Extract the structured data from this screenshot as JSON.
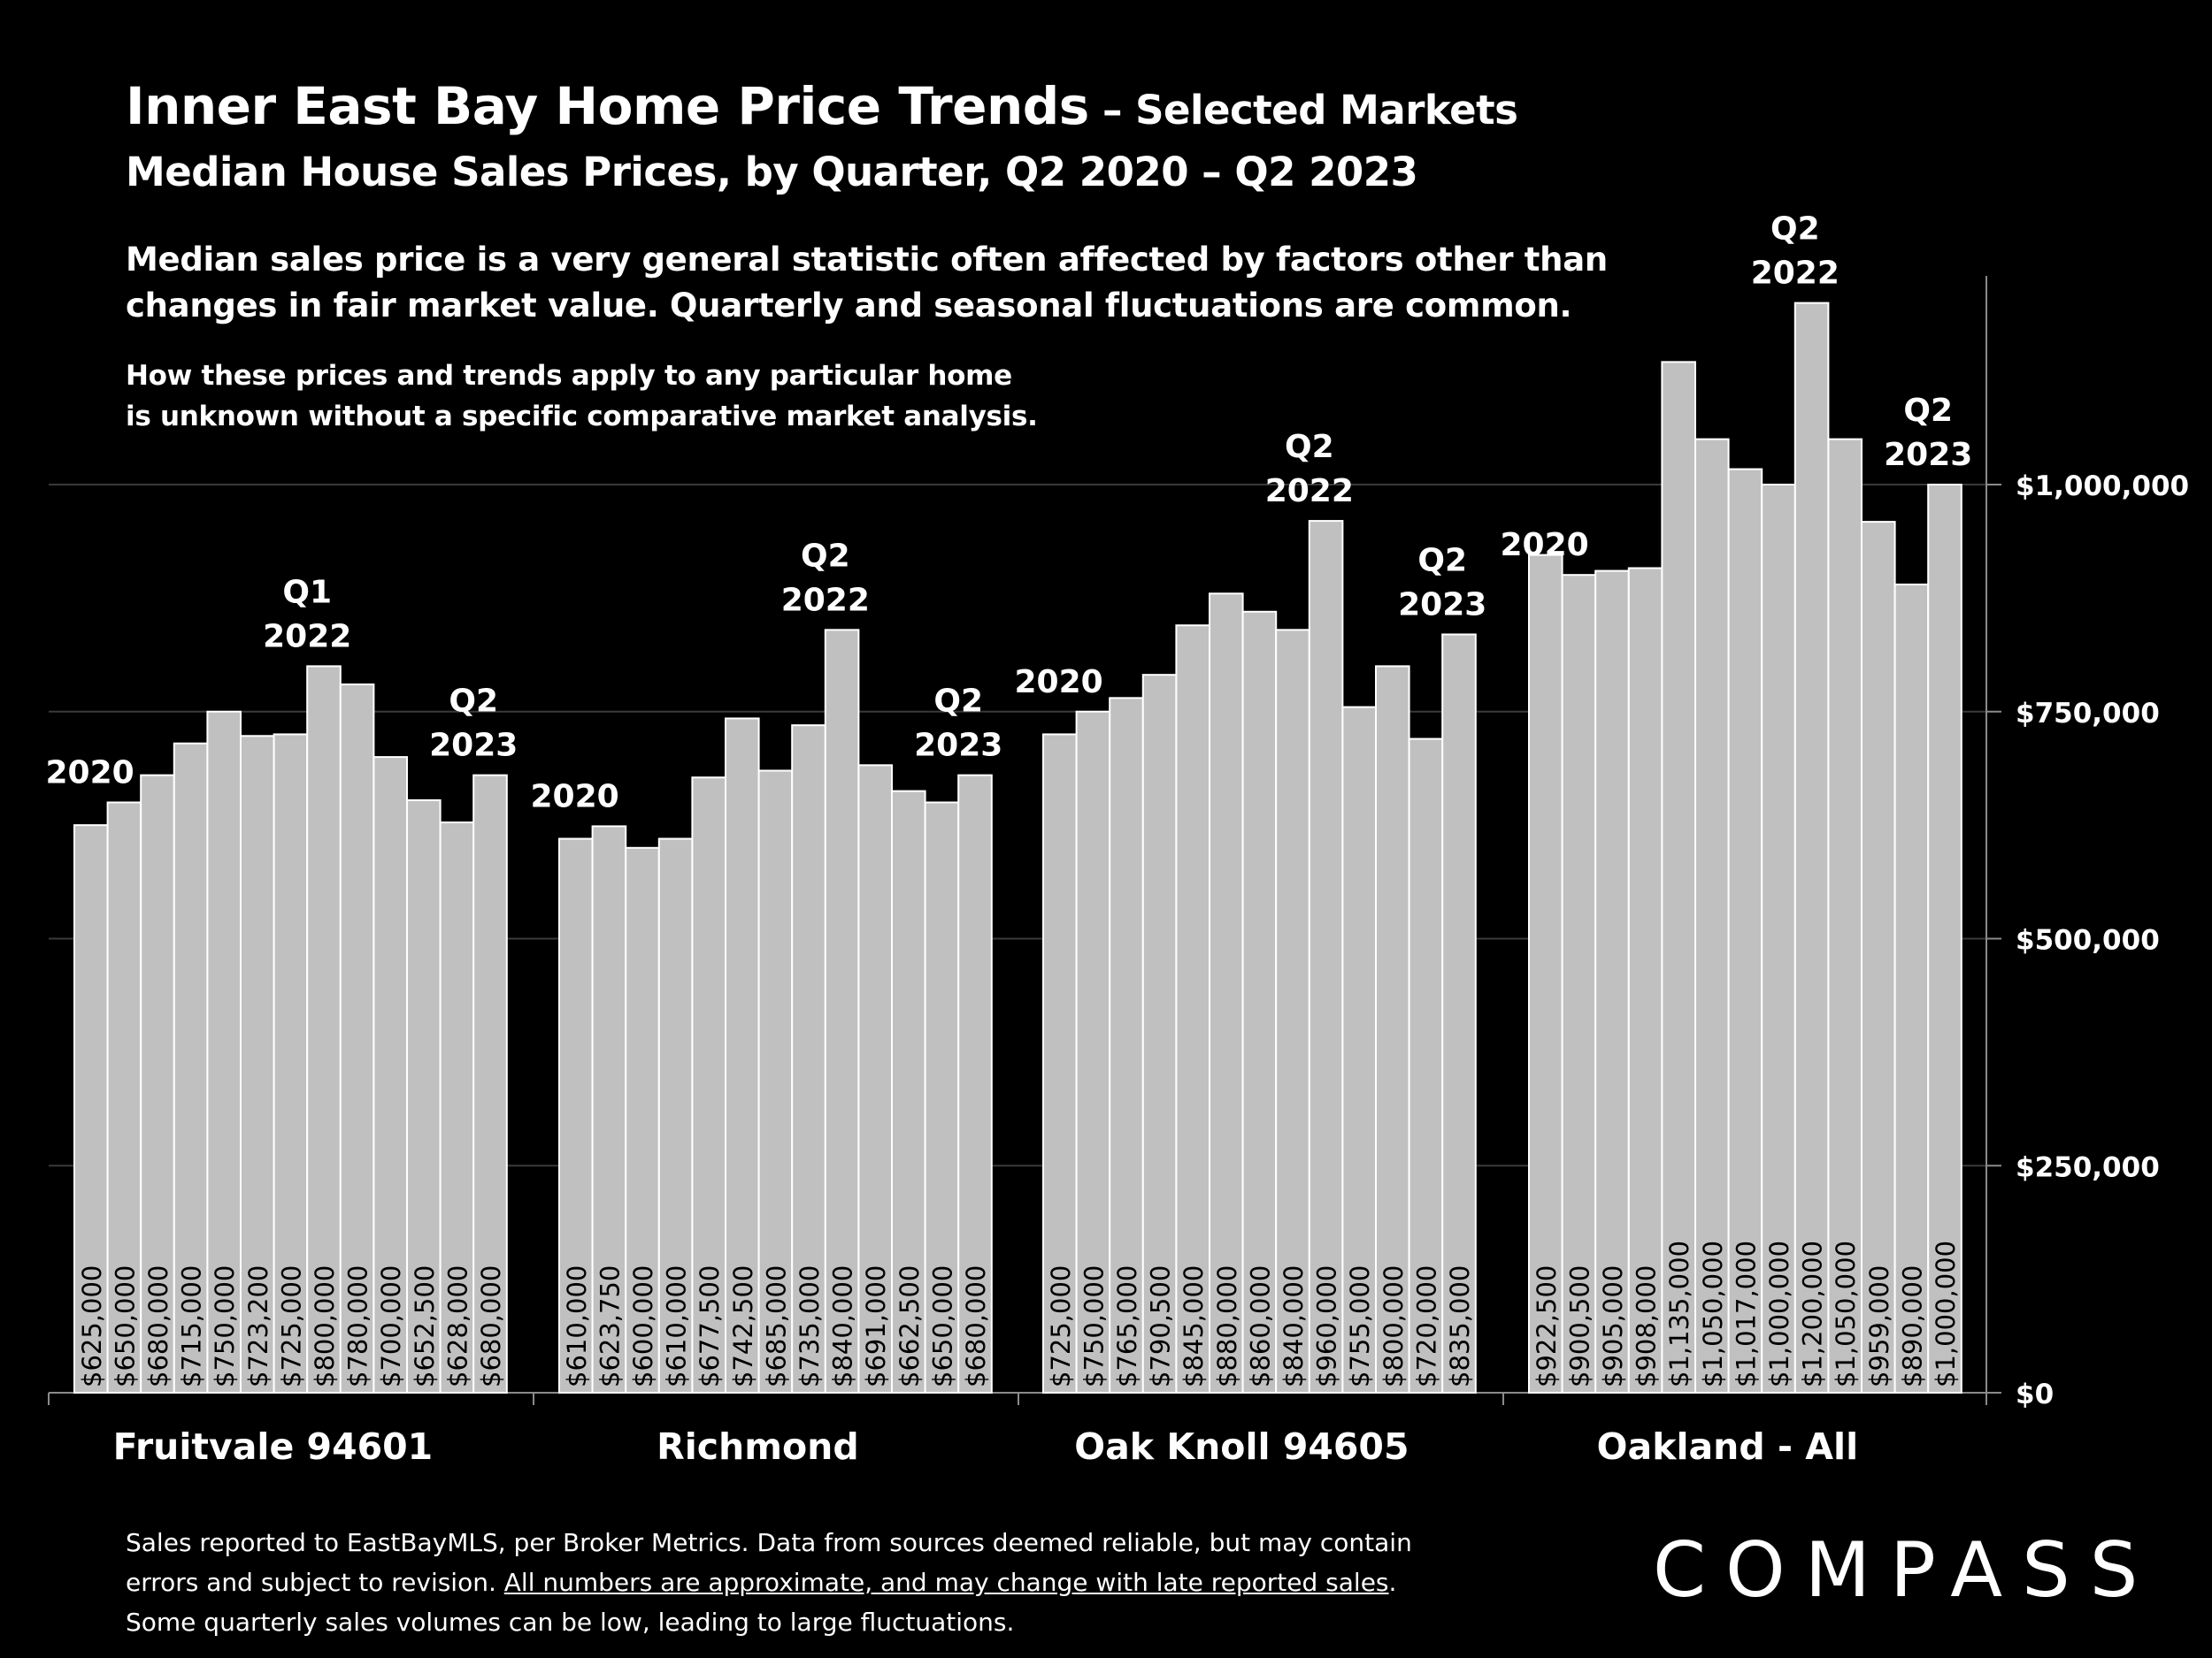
{
  "header": {
    "title_main": "Inner East Bay Home Price Trends",
    "title_sub": " – Selected Markets",
    "subtitle": "Median House Sales Prices, by Quarter, Q2 2020 – Q2 2023",
    "note_line1": "Median sales price is a very general statistic often affected by factors other than",
    "note_line2": "changes in fair market value. Quarterly and seasonal fluctuations are common.",
    "disclaimer_line1": "How these prices and trends apply to any particular home",
    "disclaimer_line2": "is unknown without a specific comparative market analysis."
  },
  "footer": {
    "line1": "Sales reported to EastBayMLS, per Broker Metrics. Data from sources deemed reliable, but may contain",
    "line2_start": "errors and subject to revision. ",
    "line2_underlined": "All numbers are approximate, and may change with late reported sales",
    "line2_end": ".",
    "line3": "Some quarterly sales volumes can be low, leading to large fluctuations."
  },
  "brand": {
    "logo_text": "COMPASS"
  },
  "colors": {
    "background": "#000000",
    "bar": "#c0c0c0",
    "bar_edge": "#ffffff",
    "text": "#ffffff",
    "grid": "#3a3a3a"
  },
  "chart_data": {
    "type": "bar",
    "ylim": [
      0,
      1250000
    ],
    "yticks": [
      0,
      250000,
      500000,
      750000,
      1000000
    ],
    "ytick_labels": [
      "$0",
      "$250,000",
      "$500,000",
      "$750,000",
      "$1,000,000"
    ],
    "y_axis_position": "right",
    "grid": true,
    "groups": [
      {
        "name": "Fruitvale 94601",
        "values": [
          625000,
          650000,
          680000,
          715000,
          750000,
          723200,
          725000,
          800000,
          780000,
          700000,
          652500,
          628000,
          680000
        ],
        "value_labels": [
          "$625,000",
          "$650,000",
          "$680,000",
          "$715,000",
          "$750,000",
          "$723,200",
          "$725,000",
          "$800,000",
          "$780,000",
          "$700,000",
          "$652,500",
          "$628,000",
          "$680,000"
        ],
        "annotations": [
          {
            "bar": 1,
            "lines": [
              "2020"
            ]
          },
          {
            "bar": 7,
            "lines": [
              "Q1",
              "2022"
            ]
          },
          {
            "bar": 12,
            "lines": [
              "Q2",
              "2023"
            ]
          }
        ]
      },
      {
        "name": "Richmond",
        "values": [
          610000,
          623750,
          600000,
          610000,
          677500,
          742500,
          685000,
          735000,
          840000,
          691000,
          662500,
          650000,
          680000
        ],
        "value_labels": [
          "$610,000",
          "$623,750",
          "$600,000",
          "$610,000",
          "$677,500",
          "$742,500",
          "$685,000",
          "$735,000",
          "$840,000",
          "$691,000",
          "$662,500",
          "$650,000",
          "$680,000"
        ],
        "annotations": [
          {
            "bar": 1,
            "lines": [
              "2020"
            ]
          },
          {
            "bar": 8,
            "lines": [
              "Q2",
              "2022"
            ]
          },
          {
            "bar": 12,
            "lines": [
              "Q2",
              "2023"
            ]
          }
        ]
      },
      {
        "name": "Oak Knoll 94605",
        "values": [
          725000,
          750000,
          765000,
          790500,
          845000,
          880000,
          860000,
          840000,
          960000,
          755000,
          800000,
          720000,
          835000
        ],
        "value_labels": [
          "$725,000",
          "$750,000",
          "$765,000",
          "$790,500",
          "$845,000",
          "$880,000",
          "$860,000",
          "$840,000",
          "$960,000",
          "$755,000",
          "$800,000",
          "$720,000",
          "$835,000"
        ],
        "annotations": [
          {
            "bar": 1,
            "lines": [
              "2020"
            ]
          },
          {
            "bar": 8,
            "lines": [
              "Q2",
              "2022"
            ]
          },
          {
            "bar": 12,
            "lines": [
              "Q2",
              "2023"
            ]
          }
        ]
      },
      {
        "name": "Oakland - All",
        "values": [
          922500,
          900500,
          905000,
          908000,
          1135000,
          1050000,
          1017000,
          1000000,
          1200000,
          1050000,
          959000,
          890000,
          1000000
        ],
        "value_labels": [
          "$922,500",
          "$900,500",
          "$905,000",
          "$908,000",
          "$1,135,000",
          "$1,050,000",
          "$1,017,000",
          "$1,000,000",
          "$1,200,000",
          "$1,050,000",
          "$959,000",
          "$890,000",
          "$1,000,000"
        ],
        "annotations": [
          {
            "bar": 1,
            "lines": [
              "2020"
            ]
          },
          {
            "bar": 8,
            "lines": [
              "Q2",
              "2022"
            ]
          },
          {
            "bar": 12,
            "lines": [
              "Q2",
              "2023"
            ]
          }
        ]
      }
    ]
  }
}
